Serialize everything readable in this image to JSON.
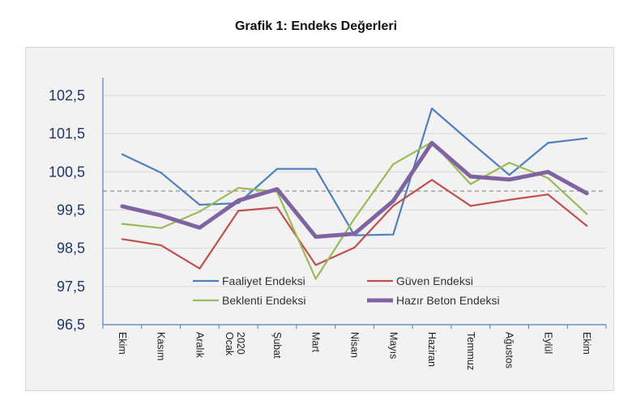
{
  "chart_data": {
    "type": "line",
    "title": "Grafik 1: Endeks Değerleri",
    "xlabel": "",
    "ylabel": "",
    "categories": [
      "Ekim",
      "Kasım",
      "Aralık",
      "2020 Ocak",
      "Şubat",
      "Mart",
      "Nisan",
      "Mayıs",
      "Haziran",
      "Temmuz",
      "Ağustos",
      "Eylül",
      "Ekim"
    ],
    "ylim": [
      96.5,
      102.5
    ],
    "yticks": [
      "96,5",
      "97,5",
      "98,5",
      "99,5",
      "100,5",
      "101,5",
      "102,5"
    ],
    "reference_line": 100,
    "grid": true,
    "legend_position": "bottom-center inside",
    "series": [
      {
        "name": "Faaliyet Endeksi",
        "color": "#4f81bd",
        "values": [
          100.96,
          100.48,
          99.64,
          99.68,
          100.58,
          100.58,
          98.84,
          98.86,
          102.16,
          101.28,
          100.42,
          101.26,
          101.38
        ]
      },
      {
        "name": "Güven Endeksi",
        "color": "#c0504d",
        "values": [
          98.74,
          98.58,
          97.97,
          99.48,
          99.57,
          98.06,
          98.52,
          99.61,
          100.29,
          99.61,
          99.77,
          99.91,
          99.09
        ]
      },
      {
        "name": "Beklenti Endeksi",
        "color": "#9bbb59",
        "values": [
          99.14,
          99.03,
          99.46,
          100.08,
          99.98,
          97.7,
          99.28,
          100.7,
          101.28,
          100.18,
          100.74,
          100.34,
          99.4
        ]
      },
      {
        "name": "Hazır Beton Endeksi",
        "color": "#8064a2",
        "values": [
          99.6,
          99.36,
          99.04,
          99.75,
          100.05,
          98.8,
          98.88,
          99.74,
          101.26,
          100.38,
          100.3,
          100.5,
          99.94
        ]
      }
    ]
  }
}
